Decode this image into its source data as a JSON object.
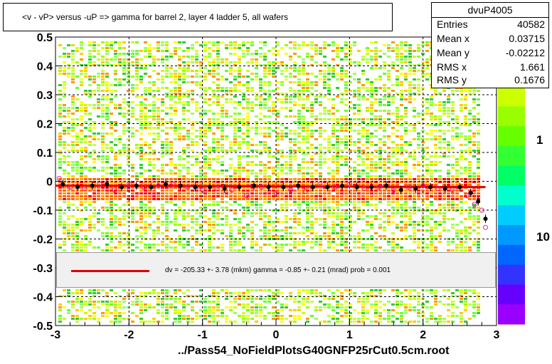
{
  "title": "<v - vP>       versus  -uP =>  gamma for barrel 2, layer 4 ladder 5, all wafers",
  "stats": {
    "name": "dvuP4005",
    "rows": [
      {
        "k": "Entries",
        "v": "40582"
      },
      {
        "k": "Mean x",
        "v": "0.03715"
      },
      {
        "k": "Mean y",
        "v": "-0.02212"
      },
      {
        "k": "RMS x",
        "v": "1.661"
      },
      {
        "k": "RMS y",
        "v": "0.1676"
      }
    ]
  },
  "fit_text": "dv = -205.33 +-  3.78 (mkm) gamma =   -0.85 +-  0.21 (mrad) prob = 0.001",
  "footer": "../Pass54_NoFieldPlotsG40GNFP25rCut0.5cm.root",
  "colors": {
    "fit_line": "#e00000",
    "profile_black": "#000000",
    "profile_open": "#e0209a"
  },
  "chart_data": {
    "type": "heatmap",
    "title": "<v - vP>       versus  -uP =>  gamma for barrel 2, layer 4 ladder 5, all wafers",
    "xlabel": "",
    "ylabel": "",
    "xlim": [
      -3,
      3
    ],
    "ylim": [
      -0.5,
      0.5
    ],
    "x_ticks": [
      "-3",
      "-2",
      "-1",
      "0",
      "1",
      "2",
      "3"
    ],
    "y_ticks": [
      "-0.5",
      "-0.4",
      "-0.3",
      "-0.2",
      "-0.1",
      "0",
      "0.1",
      "0.2",
      "0.3",
      "0.4",
      "0.5"
    ],
    "color_scale_labels": [
      "1",
      "10"
    ],
    "grid": true,
    "fit_line": {
      "x": [
        -3,
        2.85
      ],
      "y": [
        -0.015,
        -0.02
      ]
    },
    "profile_black": {
      "x": [
        -2.9,
        -2.7,
        -2.5,
        -2.3,
        -2.1,
        -1.9,
        -1.7,
        -1.5,
        -1.3,
        -1.1,
        -0.9,
        -0.7,
        -0.5,
        -0.3,
        -0.1,
        0.1,
        0.3,
        0.5,
        0.7,
        0.9,
        1.1,
        1.3,
        1.5,
        1.7,
        1.9,
        2.1,
        2.3,
        2.5,
        2.65,
        2.75,
        2.85
      ],
      "y": [
        -0.01,
        -0.02,
        -0.015,
        -0.01,
        -0.02,
        -0.015,
        -0.02,
        -0.01,
        -0.015,
        -0.02,
        -0.02,
        -0.025,
        -0.02,
        -0.015,
        -0.02,
        -0.02,
        -0.015,
        -0.02,
        -0.02,
        -0.015,
        -0.02,
        -0.02,
        -0.015,
        -0.03,
        -0.025,
        -0.02,
        -0.025,
        -0.02,
        -0.04,
        -0.07,
        -0.13
      ]
    },
    "profile_open": {
      "x": [
        -2.95,
        -2.8,
        -2.6,
        -2.4,
        -2.2,
        -2.0,
        -1.8,
        -1.6,
        -1.4,
        -1.2,
        -1.0,
        -0.8,
        -0.6,
        -0.4,
        -0.2,
        0.0,
        0.2,
        0.4,
        0.6,
        0.8,
        1.0,
        1.2,
        1.4,
        1.6,
        1.8,
        2.0,
        2.2,
        2.4,
        2.6,
        2.7,
        2.8,
        2.85
      ],
      "y": [
        0.01,
        -0.02,
        -0.025,
        -0.01,
        -0.03,
        -0.01,
        -0.02,
        -0.015,
        -0.01,
        -0.02,
        -0.03,
        -0.025,
        -0.03,
        -0.05,
        -0.02,
        -0.04,
        -0.03,
        -0.035,
        -0.01,
        -0.02,
        -0.01,
        -0.025,
        -0.02,
        -0.03,
        -0.02,
        -0.015,
        -0.025,
        -0.03,
        -0.05,
        -0.08,
        -0.1,
        -0.16
      ]
    }
  }
}
